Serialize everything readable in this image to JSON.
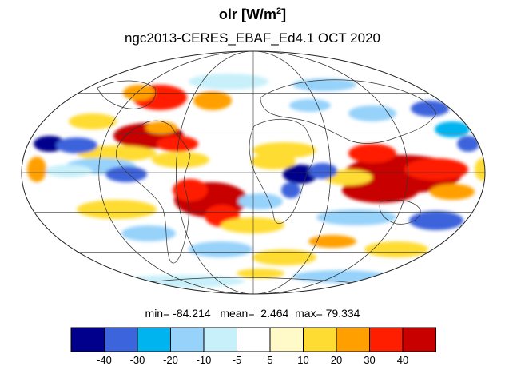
{
  "title": {
    "variable": "olr",
    "units_prefix": "[W/m",
    "units_sup": "2",
    "units_suffix": "]"
  },
  "subtitle": "ngc2013-CERES_EBAF_Ed4.1  OCT 2020",
  "stats": {
    "min_label": "min=",
    "min": "-84.214",
    "mean_label": "mean=",
    "mean": "2.464",
    "max_label": "max=",
    "max": "79.334"
  },
  "colorbar": {
    "colors": [
      "#00008c",
      "#3c64dc",
      "#00b4f0",
      "#96d2fa",
      "#c8f0fa",
      "#ffffff",
      "#fffac8",
      "#ffdc32",
      "#ffa000",
      "#ff1e00",
      "#c80000"
    ],
    "tick_labels": [
      "-40",
      "-30",
      "-20",
      "-10",
      "-5",
      "5",
      "10",
      "20",
      "30",
      "40"
    ]
  },
  "map": {
    "projection": "Mollweide",
    "grid": true,
    "anomalies": [
      {
        "region": "Indian Ocean / Maritime Continent",
        "sign": "positive",
        "color": "#c80000"
      },
      {
        "region": "Tropical South America / Amazon",
        "sign": "positive",
        "color": "#c80000"
      },
      {
        "region": "Central Africa / Congo",
        "sign": "negative",
        "color": "#00008c"
      },
      {
        "region": "Eastern Pacific",
        "sign": "negative",
        "color": "#3c64dc"
      },
      {
        "region": "North Pacific / Alaska",
        "sign": "positive",
        "color": "#ff1e00"
      }
    ]
  }
}
